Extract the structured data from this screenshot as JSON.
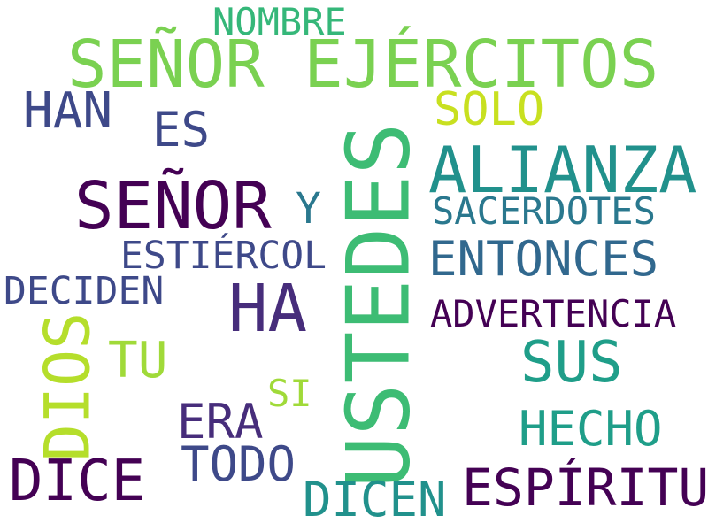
{
  "words": [
    {
      "text": "SEÑOR EJÉRCITOS",
      "color": "#7ad151"
    },
    {
      "text": "USTEDES",
      "color": "#3dbc74"
    },
    {
      "text": "SEÑOR",
      "color": "#440154"
    },
    {
      "text": "ALIANZA",
      "color": "#21918c"
    },
    {
      "text": "HA",
      "color": "#472d7b"
    },
    {
      "text": "DIOS",
      "color": "#b5de2b"
    },
    {
      "text": "DICE",
      "color": "#440154"
    },
    {
      "text": "ESPÍRITU",
      "color": "#440154"
    },
    {
      "text": "ENTONCES",
      "color": "#31688e"
    },
    {
      "text": "SUS",
      "color": "#1f9e89"
    },
    {
      "text": "NOMBRE",
      "color": "#35b779"
    },
    {
      "text": "HAN",
      "color": "#3e4989"
    },
    {
      "text": "ES",
      "color": "#3e4989"
    },
    {
      "text": "SOLO",
      "color": "#c8e020"
    },
    {
      "text": "Y",
      "color": "#2a788e"
    },
    {
      "text": "SACERDOTES",
      "color": "#2a788e"
    },
    {
      "text": "ESTIÉRCOL",
      "color": "#3e4989"
    },
    {
      "text": "DECIDEN",
      "color": "#3e4989"
    },
    {
      "text": "ADVERTENCIA",
      "color": "#440154"
    },
    {
      "text": "TU",
      "color": "#a0da39"
    },
    {
      "text": "SI",
      "color": "#a0da39"
    },
    {
      "text": "ERA",
      "color": "#472d7b"
    },
    {
      "text": "HECHO",
      "color": "#1f9e89"
    },
    {
      "text": "TODO",
      "color": "#3e4989"
    },
    {
      "text": "DICEN",
      "color": "#21918c"
    }
  ]
}
